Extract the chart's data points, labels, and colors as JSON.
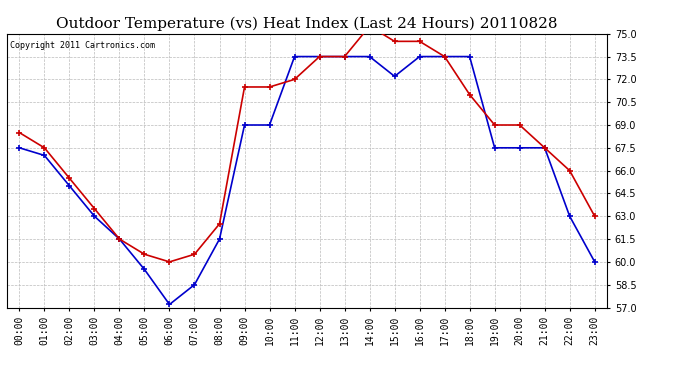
{
  "title": "Outdoor Temperature (vs) Heat Index (Last 24 Hours) 20110828",
  "copyright": "Copyright 2011 Cartronics.com",
  "x_labels": [
    "00:00",
    "01:00",
    "02:00",
    "03:00",
    "04:00",
    "05:00",
    "06:00",
    "07:00",
    "08:00",
    "09:00",
    "10:00",
    "11:00",
    "12:00",
    "13:00",
    "14:00",
    "15:00",
    "16:00",
    "17:00",
    "18:00",
    "19:00",
    "20:00",
    "21:00",
    "22:00",
    "23:00"
  ],
  "temp_blue": [
    67.5,
    67.0,
    65.0,
    63.0,
    61.5,
    59.5,
    57.2,
    58.5,
    61.5,
    69.0,
    69.0,
    73.5,
    73.5,
    73.5,
    73.5,
    72.2,
    73.5,
    73.5,
    73.5,
    67.5,
    67.5,
    67.5,
    63.0,
    60.0
  ],
  "heat_red": [
    68.5,
    67.5,
    65.5,
    63.5,
    61.5,
    60.5,
    60.0,
    60.5,
    62.5,
    71.5,
    71.5,
    72.0,
    73.5,
    73.5,
    75.5,
    74.5,
    74.5,
    73.5,
    71.0,
    69.0,
    69.0,
    67.5,
    66.0,
    63.0
  ],
  "ylim": [
    57.0,
    75.0
  ],
  "yticks": [
    57.0,
    58.5,
    60.0,
    61.5,
    63.0,
    64.5,
    66.0,
    67.5,
    69.0,
    70.5,
    72.0,
    73.5,
    75.0
  ],
  "bg_color": "#ffffff",
  "grid_color": "#bbbbbb",
  "blue_color": "#0000cc",
  "red_color": "#cc0000",
  "title_fontsize": 11,
  "tick_fontsize": 7,
  "copyright_fontsize": 6
}
